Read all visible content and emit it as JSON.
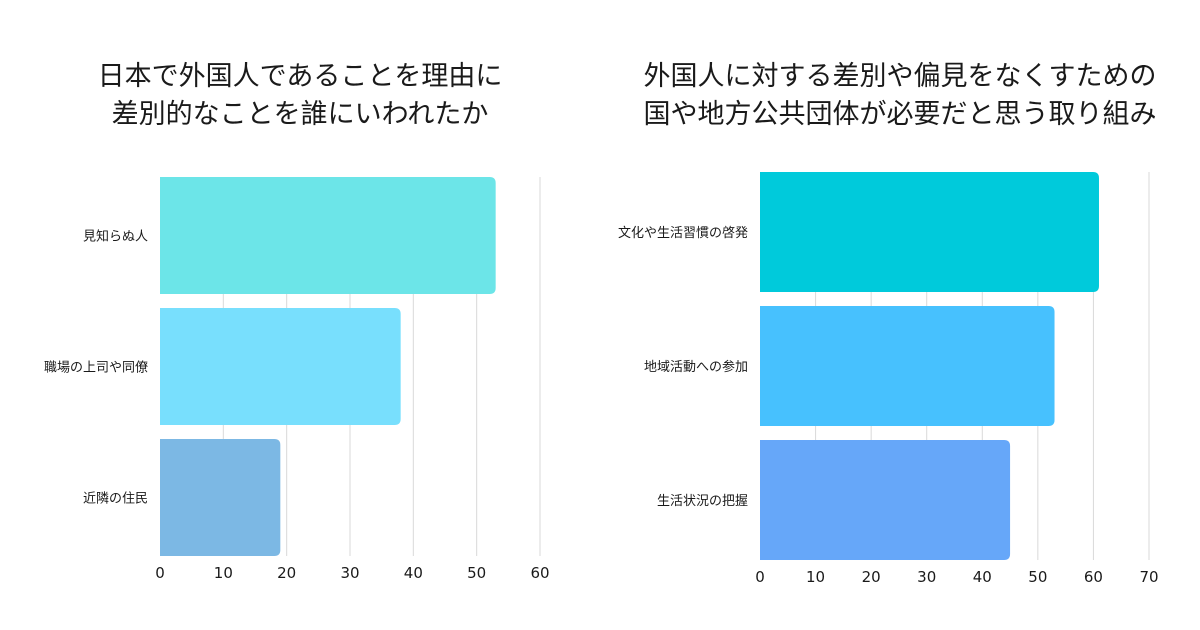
{
  "chart_data": [
    {
      "type": "bar",
      "orientation": "horizontal",
      "title_lines": [
        "日本で外国人であることを理由に",
        "差別的なことを誰にいわれたか"
      ],
      "categories": [
        "見知らぬ人",
        "職場の上司や同僚",
        "近隣の住民"
      ],
      "values": [
        53,
        38,
        19
      ],
      "colors": [
        "#6ce5e8",
        "#78dffd",
        "#7cb8e4"
      ],
      "xlim": [
        0,
        60
      ],
      "xticks": [
        "0",
        "10",
        "20",
        "30",
        "40",
        "50",
        "60"
      ],
      "grid": true
    },
    {
      "type": "bar",
      "orientation": "horizontal",
      "title_lines": [
        "外国人に対する差別や偏見をなくすための",
        "国や地方公共団体が必要だと思う取り組み"
      ],
      "categories": [
        "文化や生活習慣の啓発",
        "地域活動への参加",
        "生活状況の把握"
      ],
      "values": [
        61,
        53,
        45
      ],
      "colors": [
        "#00cadb",
        "#47c1fe",
        "#66a7f9"
      ],
      "xlim": [
        0,
        70
      ],
      "xticks": [
        "0",
        "10",
        "20",
        "30",
        "40",
        "50",
        "60",
        "70"
      ],
      "grid": true
    }
  ]
}
